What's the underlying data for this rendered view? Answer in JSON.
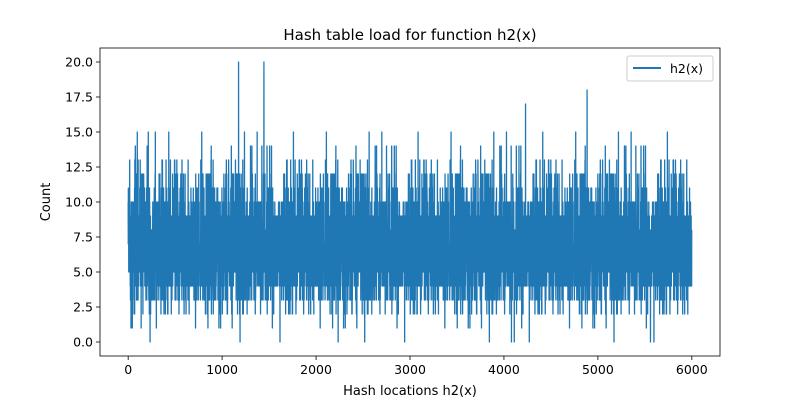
{
  "chart_data": {
    "type": "line",
    "title": "Hash table load for function h2(x)",
    "xlabel": "Hash locations h2(x)",
    "ylabel": "Count",
    "xlim": [
      -300,
      6300
    ],
    "ylim": [
      -1,
      21
    ],
    "xticks": [
      0,
      1000,
      2000,
      3000,
      4000,
      5000,
      6000
    ],
    "xtick_labels": [
      "0",
      "1000",
      "2000",
      "3000",
      "4000",
      "5000",
      "6000"
    ],
    "yticks": [
      0.0,
      2.5,
      5.0,
      7.5,
      10.0,
      12.5,
      15.0,
      17.5,
      20.0
    ],
    "ytick_labels": [
      "0.0",
      "2.5",
      "5.0",
      "7.5",
      "10.0",
      "12.5",
      "15.0",
      "17.5",
      "20.0"
    ],
    "grid": false,
    "legend_position": "top-right",
    "series": [
      {
        "name": "h2(x)",
        "color": "#1f77b4",
        "x_start": 0,
        "x_end": 5999,
        "n_points": 6000,
        "typical_range": [
          3,
          12
        ],
        "notable_points": [
          {
            "x": 1175,
            "y": 20
          },
          {
            "x": 1445,
            "y": 20
          },
          {
            "x": 4885,
            "y": 18
          },
          {
            "x": 4230,
            "y": 17
          },
          {
            "x": 2235,
            "y": 0
          },
          {
            "x": 4080,
            "y": 0
          },
          {
            "x": 4110,
            "y": 0
          },
          {
            "x": 5560,
            "y": 0
          },
          {
            "x": 30,
            "y": 1
          }
        ]
      }
    ]
  }
}
